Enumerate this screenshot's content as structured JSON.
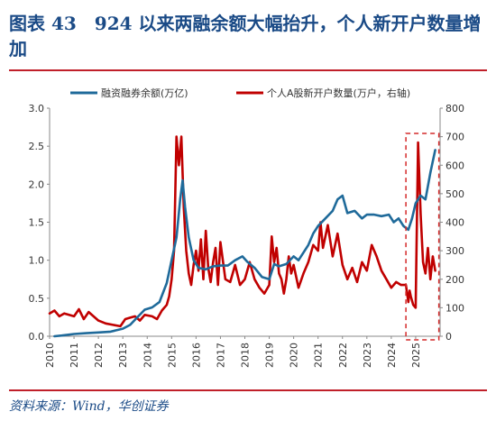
{
  "title": "图表 43　924 以来两融余额大幅抬升，个人新开户数量增加",
  "source": "资料来源：Wind，华创证券",
  "chart_data": {
    "type": "line",
    "left_axis": {
      "min": 0,
      "max": 3.0,
      "ticks": [
        "0.0",
        "0.5",
        "1.0",
        "1.5",
        "2.0",
        "2.5",
        "3.0"
      ]
    },
    "right_axis": {
      "min": 0,
      "max": 800,
      "ticks": [
        "0",
        "100",
        "200",
        "300",
        "400",
        "500",
        "600",
        "700",
        "800"
      ]
    },
    "x_axis": {
      "min": 2010,
      "max": 2026,
      "ticks": [
        "2010",
        "2011",
        "2012",
        "2013",
        "2014",
        "2015",
        "2016",
        "2017",
        "2018",
        "2019",
        "2020",
        "2021",
        "2022",
        "2023",
        "2024",
        "2025"
      ]
    },
    "legend_position": "top",
    "highlight_box": {
      "x_from": 2024.6,
      "x_to": 2025.95,
      "label": ""
    },
    "series": [
      {
        "name": "融资融券余额(万亿)",
        "axis": "left",
        "color": "#1f6a9a",
        "x": [
          2010.2,
          2010.5,
          2011.0,
          2011.5,
          2012.0,
          2012.5,
          2013.0,
          2013.3,
          2013.6,
          2013.9,
          2014.2,
          2014.5,
          2014.8,
          2015.0,
          2015.2,
          2015.35,
          2015.45,
          2015.55,
          2015.7,
          2015.9,
          2016.1,
          2016.4,
          2016.7,
          2017.0,
          2017.3,
          2017.6,
          2017.9,
          2018.1,
          2018.4,
          2018.7,
          2019.0,
          2019.2,
          2019.4,
          2019.7,
          2020.0,
          2020.2,
          2020.4,
          2020.6,
          2020.8,
          2021.0,
          2021.3,
          2021.6,
          2021.8,
          2022.0,
          2022.2,
          2022.5,
          2022.8,
          2023.0,
          2023.3,
          2023.6,
          2023.9,
          2024.1,
          2024.3,
          2024.5,
          2024.7,
          2024.85,
          2025.0,
          2025.2,
          2025.4,
          2025.6,
          2025.8
        ],
        "y": [
          0.0,
          0.01,
          0.03,
          0.04,
          0.05,
          0.06,
          0.1,
          0.15,
          0.25,
          0.35,
          0.38,
          0.45,
          0.7,
          1.0,
          1.3,
          1.8,
          2.05,
          1.7,
          1.3,
          1.0,
          0.9,
          0.88,
          0.92,
          0.93,
          0.93,
          1.0,
          1.05,
          0.98,
          0.9,
          0.78,
          0.75,
          0.95,
          0.92,
          0.95,
          1.05,
          1.0,
          1.1,
          1.2,
          1.35,
          1.45,
          1.55,
          1.65,
          1.8,
          1.85,
          1.62,
          1.65,
          1.55,
          1.6,
          1.6,
          1.58,
          1.6,
          1.5,
          1.55,
          1.45,
          1.4,
          1.55,
          1.75,
          1.85,
          1.8,
          2.15,
          2.45
        ]
      },
      {
        "name": "个人A股新开户数量(万户，右轴)",
        "axis": "right",
        "color": "#c00000",
        "x": [
          2010.0,
          2010.2,
          2010.4,
          2010.6,
          2010.8,
          2011.0,
          2011.2,
          2011.4,
          2011.6,
          2011.8,
          2012.0,
          2012.3,
          2012.6,
          2012.9,
          2013.1,
          2013.3,
          2013.5,
          2013.7,
          2013.9,
          2014.2,
          2014.4,
          2014.6,
          2014.8,
          2014.9,
          2015.0,
          2015.1,
          2015.2,
          2015.3,
          2015.4,
          2015.5,
          2015.6,
          2015.7,
          2015.8,
          2015.9,
          2016.0,
          2016.1,
          2016.2,
          2016.3,
          2016.4,
          2016.5,
          2016.6,
          2016.7,
          2016.8,
          2016.9,
          2017.0,
          2017.2,
          2017.4,
          2017.6,
          2017.8,
          2018.0,
          2018.2,
          2018.4,
          2018.6,
          2018.8,
          2019.0,
          2019.1,
          2019.2,
          2019.3,
          2019.4,
          2019.5,
          2019.6,
          2019.7,
          2019.8,
          2019.9,
          2020.0,
          2020.2,
          2020.4,
          2020.6,
          2020.8,
          2021.0,
          2021.1,
          2021.2,
          2021.4,
          2021.6,
          2021.8,
          2022.0,
          2022.2,
          2022.4,
          2022.6,
          2022.8,
          2023.0,
          2023.2,
          2023.4,
          2023.6,
          2023.8,
          2024.0,
          2024.2,
          2024.4,
          2024.6,
          2024.7,
          2024.75,
          2024.8,
          2024.9,
          2025.0,
          2025.1,
          2025.2,
          2025.3,
          2025.4,
          2025.5,
          2025.6,
          2025.7,
          2025.8
        ],
        "y": [
          80,
          90,
          70,
          80,
          75,
          70,
          95,
          60,
          85,
          70,
          55,
          45,
          40,
          35,
          60,
          65,
          70,
          55,
          75,
          70,
          60,
          90,
          110,
          140,
          200,
          300,
          700,
          600,
          700,
          450,
          300,
          220,
          180,
          250,
          300,
          230,
          340,
          200,
          370,
          240,
          190,
          260,
          310,
          180,
          330,
          200,
          190,
          250,
          180,
          200,
          260,
          200,
          170,
          150,
          180,
          350,
          260,
          310,
          220,
          200,
          150,
          200,
          280,
          220,
          250,
          170,
          220,
          260,
          320,
          300,
          400,
          310,
          390,
          280,
          360,
          250,
          200,
          240,
          190,
          260,
          230,
          320,
          280,
          230,
          200,
          170,
          190,
          180,
          180,
          120,
          160,
          140,
          110,
          100,
          680,
          430,
          260,
          220,
          310,
          200,
          280,
          230
        ]
      }
    ]
  }
}
